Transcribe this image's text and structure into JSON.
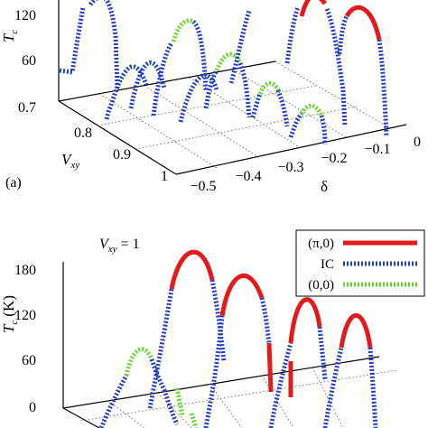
{
  "chart_data": [
    {
      "type": "line",
      "panel_label": "(a)",
      "ylabel": "T_c (K)",
      "ylabel_main": "T",
      "ylabel_sub": "c",
      "ylabel_unit": "(K)",
      "y_ticks": [
        "60",
        "120"
      ],
      "y_bottom_tick": "0.7",
      "vxy_label_main": "V",
      "vxy_label_sub": "xy",
      "vxy_ticks": [
        "0.8",
        "0.9",
        "1"
      ],
      "delta_label": "δ",
      "delta_ticks": [
        "−0.5",
        "−0.4",
        "−0.3",
        "−0.2",
        "−0.1",
        "0"
      ],
      "ylim": [
        40,
        150
      ],
      "series_colors": {
        "pi0": "#e31a1c",
        "ic": "#1f3fbf",
        "zero": "#66d62e"
      }
    },
    {
      "type": "line",
      "annotation_main": "V",
      "annotation_sub": "xy",
      "annotation_value": " = 1",
      "ylabel": "T_c (K)",
      "ylabel_main": "T",
      "ylabel_sub": "c",
      "ylabel_unit": "(K)",
      "y_ticks": [
        "0",
        "60",
        "120",
        "180"
      ],
      "ylim": [
        0,
        180
      ],
      "legend": [
        {
          "label": "(π,0)",
          "color": "#e31a1c",
          "style": "solid"
        },
        {
          "label": "IC",
          "color": "#1f3fbf",
          "style": "dotted"
        },
        {
          "label": "(0,0)",
          "color": "#66d62e",
          "style": "dotted"
        }
      ],
      "legend_position": "top-right"
    }
  ]
}
